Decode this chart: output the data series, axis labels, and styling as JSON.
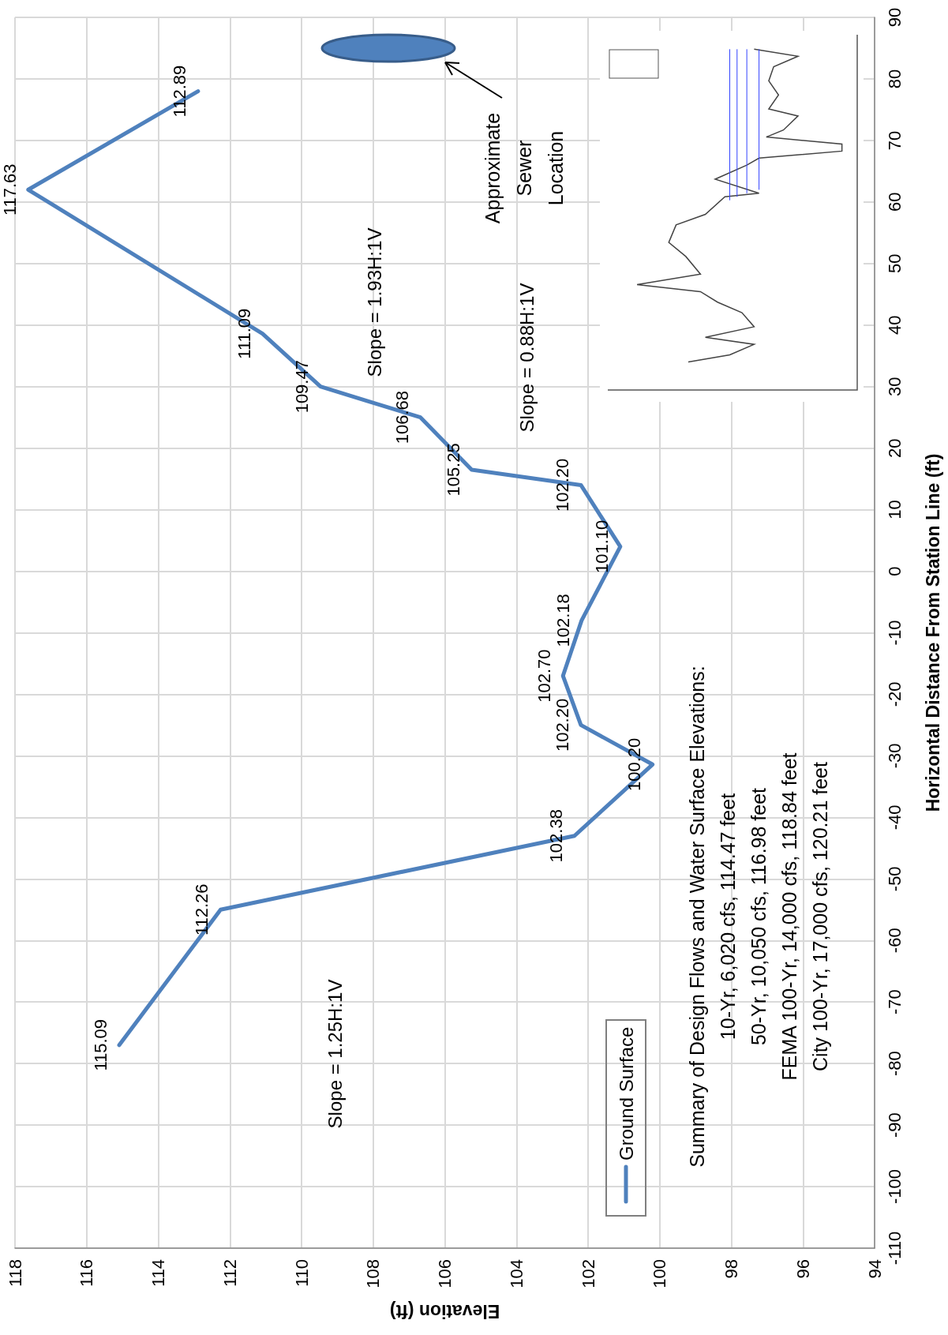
{
  "chart_data": {
    "type": "line",
    "xlabel": "Elevation (ft)",
    "ylabel": "Horizontal Distance From Station Line (ft)",
    "xlim": [
      118,
      94
    ],
    "xticks": [
      118,
      116,
      114,
      112,
      110,
      108,
      106,
      104,
      102,
      100,
      98,
      96,
      94
    ],
    "ylim": [
      -110,
      90
    ],
    "yticks": [
      -110,
      -100,
      -90,
      -80,
      -70,
      -60,
      -50,
      -40,
      -30,
      -20,
      -10,
      0,
      10,
      20,
      30,
      40,
      50,
      60,
      70,
      80,
      90
    ],
    "grid": true,
    "legend": "bottom right",
    "marker": "none",
    "line_style": "solid",
    "series": [
      {
        "name": "Ground Surface",
        "color": "#4f81bd",
        "x": [
          115.09,
          112.26,
          102.38,
          100.2,
          102.2,
          102.7,
          102.18,
          101.1,
          102.2,
          105.25,
          106.68,
          109.47,
          111.09,
          117.63,
          112.89
        ],
        "values": [
          -77,
          -55,
          -43,
          -31.4,
          -25,
          -17,
          -8,
          4,
          14,
          16.5,
          25,
          30,
          38.6,
          62,
          78
        ]
      }
    ],
    "annotations": [
      "Slope = 1.25H:1V",
      "Slope = 1.93H:1V",
      "Slope = 0.88H:1V",
      "Approximate\nSewer\nLocation",
      "Summary of Design Flows and Water Surface Elevations:\n10-Yr, 6,020 cfs, 114.47 feet\n50-Yr, 10,050 cfs, 116.98 feet\nFEMA 100-Yr, 14,000 cfs, 118.84 feet\nCity 100-Yr, 17,000 cfs, 120.21 feet",
      {
        "text": "115.09",
        "x": 115.09,
        "y": -77
      },
      {
        "text": "112.26",
        "x": 112.26,
        "y": -55
      },
      {
        "text": "102.38",
        "x": 102.38,
        "y": -43
      },
      {
        "text": "100.20",
        "x": 100.2,
        "y": -31.4
      },
      {
        "text": "102.20",
        "x": 102.2,
        "y": -25
      },
      {
        "text": "102.70",
        "x": 102.7,
        "y": -17
      },
      {
        "text": "102.18",
        "x": 102.18,
        "y": -8
      },
      {
        "text": "101.10",
        "x": 101.1,
        "y": 4
      },
      {
        "text": "102.20",
        "x": 102.2,
        "y": 14
      },
      {
        "text": "105.25",
        "x": 105.25,
        "y": 16.5
      },
      {
        "text": "106.68",
        "x": 106.68,
        "y": 25
      },
      {
        "text": "109.47",
        "x": 109.47,
        "y": 30
      },
      {
        "text": "111.09",
        "x": 111.09,
        "y": 38.6
      },
      {
        "text": "117.63",
        "x": 117.63,
        "y": 62
      },
      {
        "text": "112.89",
        "x": 112.89,
        "y": 78
      }
    ]
  }
}
